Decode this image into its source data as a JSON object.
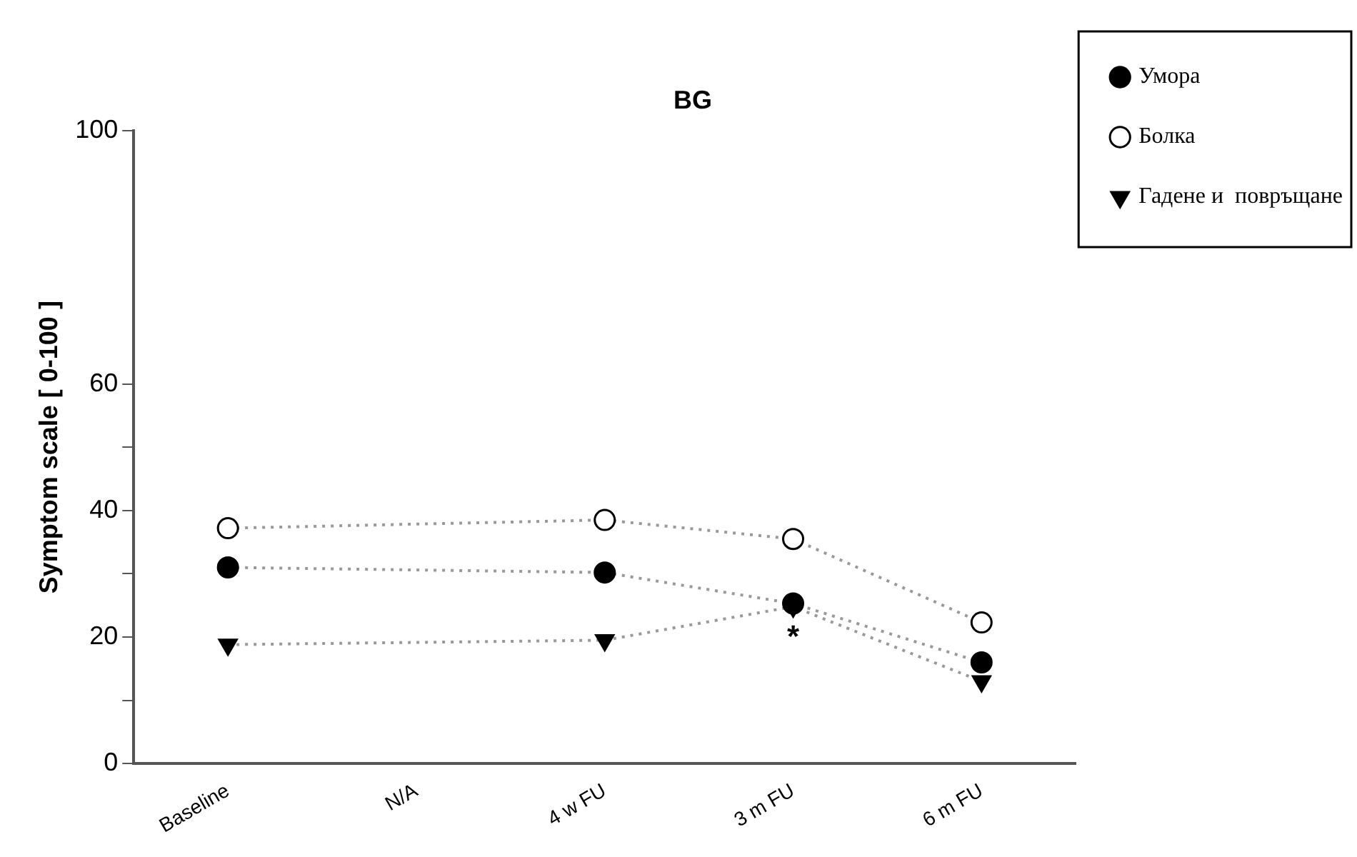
{
  "chart_data": {
    "type": "line",
    "title": "BG",
    "ylabel": "Symptom scale [ 0-100 ]",
    "categories": [
      "Baseline",
      "N/A",
      "4 w FU",
      "3 m FU",
      "6 m FU"
    ],
    "series": [
      {
        "name": "Умора",
        "color": "#000000",
        "marker": "circle",
        "values": [
          31,
          null,
          30.2,
          25.3,
          16
        ]
      },
      {
        "name": "Болка",
        "color": "#ffffff",
        "marker": "circle",
        "values": [
          37.2,
          null,
          38.5,
          35.5,
          22.3
        ]
      },
      {
        "name": "Гадене и  повръщане",
        "color": "#000000",
        "marker": "triangle",
        "values": [
          18.8,
          null,
          19.5,
          24.8,
          13
        ]
      }
    ],
    "ylim": [
      0,
      100
    ],
    "yticks": [
      0,
      {
        "value": 10,
        "label": null
      },
      20,
      {
        "value": 30,
        "label": null
      },
      40,
      {
        "value": 50,
        "label": null
      },
      60,
      100
    ],
    "line_style": "dotted",
    "grid": false,
    "legend": "top right",
    "annotations": [
      {
        "text": "*",
        "x": "3 m FU",
        "y": 24.8
      }
    ]
  }
}
